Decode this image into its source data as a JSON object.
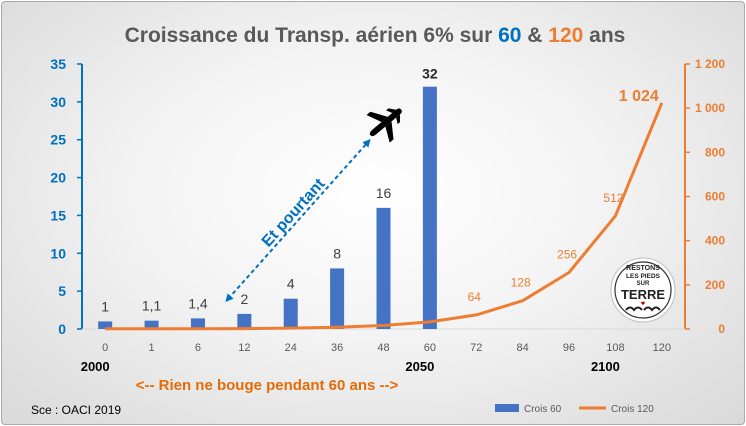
{
  "chart_data": {
    "type": "bar+line",
    "title": {
      "prefix": "Croissance du Transp. aérien 6% sur ",
      "num1": "60",
      "middle": " & ",
      "num2": "120",
      "suffix": " ans"
    },
    "categories": [
      "0",
      "1",
      "6",
      "12",
      "24",
      "36",
      "48",
      "60",
      "72",
      "84",
      "96",
      "108",
      "120"
    ],
    "series": [
      {
        "name": "Crois 60",
        "type": "bar",
        "axis": "left",
        "values": [
          1,
          1.1,
          1.4,
          2,
          4,
          8,
          16,
          32,
          null,
          null,
          null,
          null,
          null
        ],
        "labels": [
          "1",
          "1,1",
          "1,4",
          "2",
          "4",
          "8",
          "16",
          "32",
          "",
          "",
          "",
          "",
          ""
        ]
      },
      {
        "name": "Crois 120",
        "type": "line",
        "axis": "right",
        "values": [
          1,
          1.1,
          1.4,
          2,
          4,
          8,
          16,
          32,
          64,
          128,
          256,
          512,
          1024
        ],
        "labels": [
          "",
          "",
          "",
          "",
          "",
          "",
          "",
          "",
          "64",
          "128",
          "256",
          "512",
          "1 024"
        ]
      }
    ],
    "y_left": {
      "range": [
        0,
        35
      ],
      "ticks": [
        0,
        5,
        10,
        15,
        20,
        25,
        30,
        35
      ],
      "tick_labels": [
        "0",
        "5",
        "10",
        "15",
        "20",
        "25",
        "30",
        "35"
      ]
    },
    "y_right": {
      "range": [
        0,
        1200
      ],
      "ticks": [
        0,
        200,
        400,
        600,
        800,
        1000,
        1200
      ],
      "tick_labels": [
        "0",
        "200",
        "400",
        "600",
        "800",
        "1 000",
        "1 200"
      ]
    },
    "year_labels": [
      {
        "category": "0",
        "text": "2000"
      },
      {
        "category": "60",
        "text": "2050"
      },
      {
        "category": "108",
        "text": "2100"
      }
    ],
    "annotations": {
      "diagonal_text": "Et pourtant",
      "bottom_note": "<-- Rien ne bouge pendant 60 ans -->",
      "source": "Sce : OACI 2019"
    },
    "logo_text": [
      "RESTONS",
      "LES PIEDS",
      "SUR",
      "TERRE"
    ],
    "legend": {
      "position": "bottom-right"
    },
    "grid": false,
    "colors": {
      "bars": "#4472c4",
      "line": "#ed7d31",
      "blue_axis": "#0070c0",
      "orange_axis": "#ed7d31",
      "title": "#595959",
      "note": "#e36c09"
    },
    "icons": [
      "airplane-icon",
      "dashed-arrow"
    ]
  }
}
